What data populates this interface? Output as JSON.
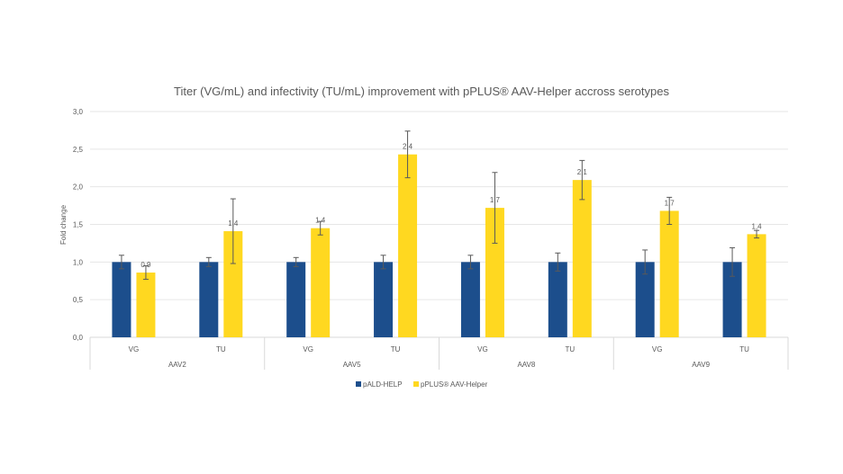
{
  "chart_data": {
    "type": "bar",
    "title": "Titer (VG/mL) and infectivity (TU/mL) improvement with pPLUS® AAV-Helper accross serotypes",
    "xlabel": "",
    "ylabel": "Fold change",
    "ylim": [
      0,
      3.0
    ],
    "yticks": [
      "0,0",
      "0,5",
      "1,0",
      "1,5",
      "2,0",
      "2,5",
      "3,0"
    ],
    "ytick_values": [
      0,
      0.5,
      1.0,
      1.5,
      2.0,
      2.5,
      3.0
    ],
    "grid": true,
    "legend_position": "bottom",
    "groups": [
      {
        "label": "AAV2",
        "categories": [
          "VG",
          "TU"
        ]
      },
      {
        "label": "AAV5",
        "categories": [
          "VG",
          "TU"
        ]
      },
      {
        "label": "AAV8",
        "categories": [
          "VG",
          "TU"
        ]
      },
      {
        "label": "AAV9",
        "categories": [
          "VG",
          "TU"
        ]
      }
    ],
    "categories": [
      "AAV2 VG",
      "AAV2 TU",
      "AAV5 VG",
      "AAV5 TU",
      "AAV8 VG",
      "AAV8 TU",
      "AAV9 VG",
      "AAV9 TU"
    ],
    "series": [
      {
        "name": "pALD-HELP",
        "color": "#1c4e8c",
        "values": [
          1.0,
          1.0,
          1.0,
          1.0,
          1.0,
          1.0,
          1.0,
          1.0
        ],
        "errors": [
          0.09,
          0.06,
          0.06,
          0.09,
          0.09,
          0.12,
          0.16,
          0.19
        ],
        "data_labels": [
          "",
          "",
          "",
          "",
          "",
          "",
          "",
          ""
        ]
      },
      {
        "name": "pPLUS® AAV-Helper",
        "color": "#ffd820",
        "values": [
          0.86,
          1.41,
          1.45,
          2.43,
          1.72,
          2.09,
          1.68,
          1.37
        ],
        "errors": [
          0.09,
          0.43,
          0.09,
          0.31,
          0.47,
          0.26,
          0.18,
          0.05
        ],
        "data_labels": [
          "0,9",
          "1,4",
          "1,4",
          "2,4",
          "1,7",
          "2,1",
          "1,7",
          "1,4"
        ]
      }
    ],
    "colors": {
      "text": "#595959",
      "grid": "#e6e6e6",
      "error_bar": "#595959"
    }
  }
}
